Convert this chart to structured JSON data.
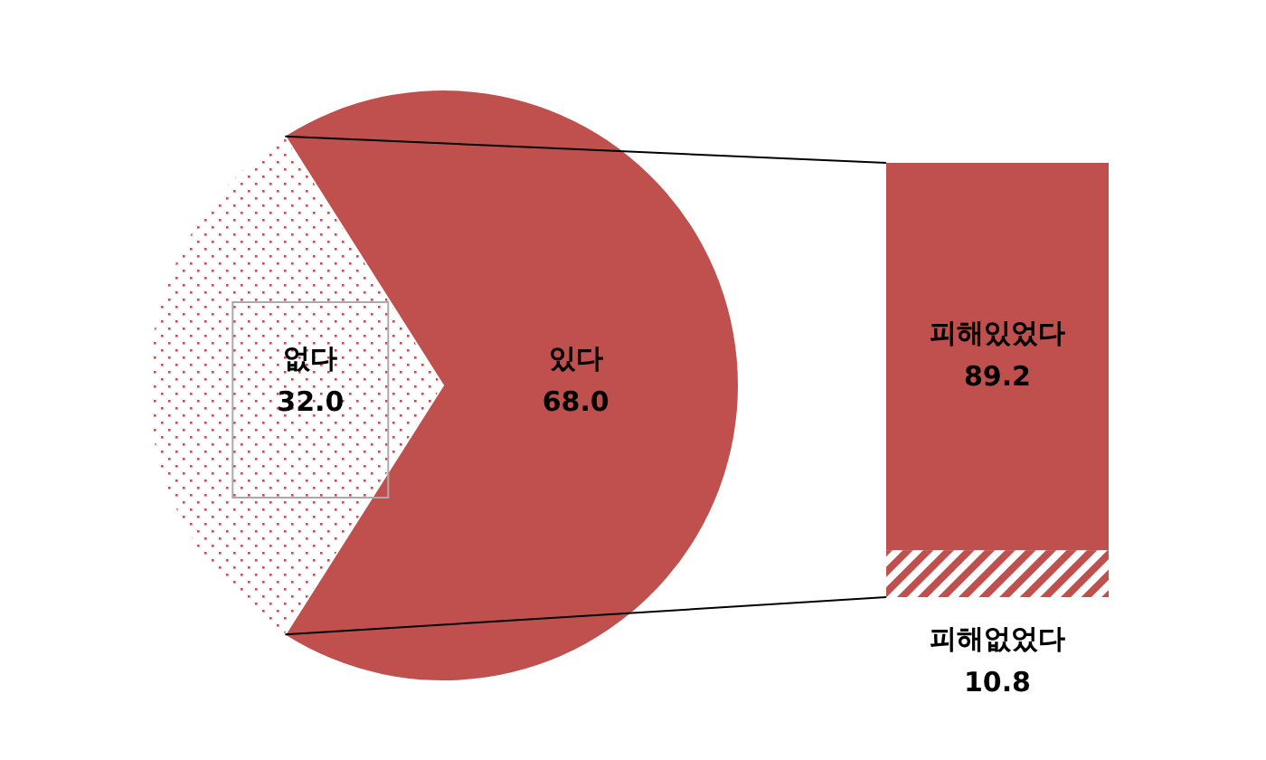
{
  "chart_data": [
    {
      "type": "pie",
      "categories": [
        "있다",
        "없다"
      ],
      "values": [
        68.0,
        32.0
      ],
      "colors": [
        "#c0504d",
        "#ffffff"
      ],
      "value_labels": [
        "68.0",
        "32.0"
      ]
    },
    {
      "type": "bar",
      "stacked": true,
      "categories": [
        null
      ],
      "data_labels": true,
      "series": [
        {
          "name": "피해없었다",
          "color": "#c0504d",
          "values": [
            10.8
          ]
        },
        {
          "name": "피해있었다",
          "color": "#c0504d",
          "values": [
            89.2
          ]
        }
      ]
    }
  ]
}
